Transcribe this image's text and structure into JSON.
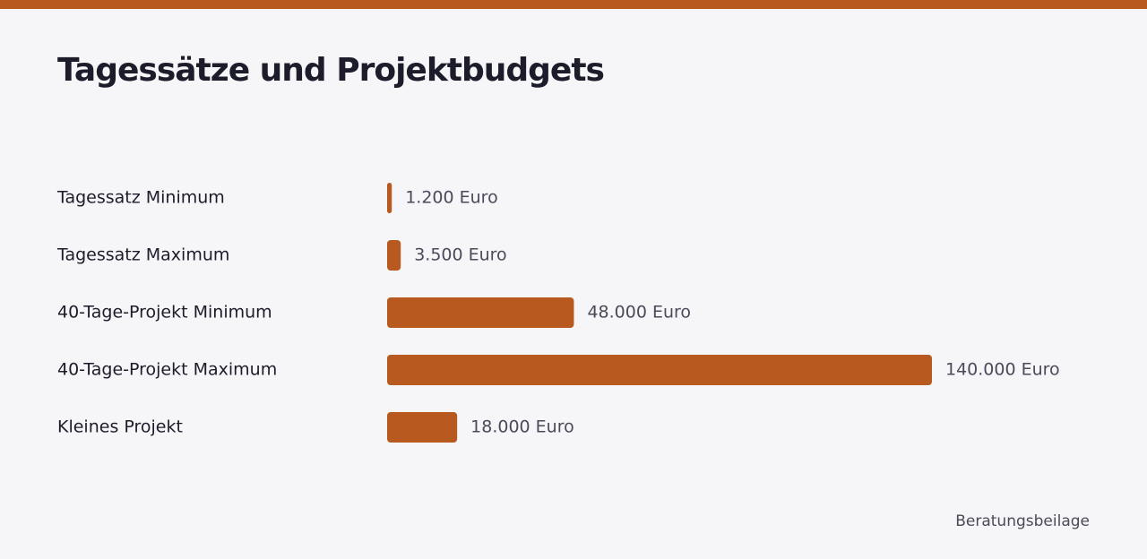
{
  "chart_data": {
    "type": "bar",
    "orientation": "horizontal",
    "title": "Tagessätze und Projektbudgets",
    "categories": [
      "Tagessatz Minimum",
      "Tagessatz Maximum",
      "40-Tage-Projekt Minimum",
      "40-Tage-Projekt Maximum",
      "Kleines Projekt"
    ],
    "values": [
      1200,
      3500,
      48000,
      140000,
      18000
    ],
    "value_labels": [
      "1.200 Euro",
      "3.500 Euro",
      "48.000 Euro",
      "140.000 Euro",
      "18.000 Euro"
    ],
    "color": "#b85a20",
    "source": "Beratungsbeilage"
  }
}
